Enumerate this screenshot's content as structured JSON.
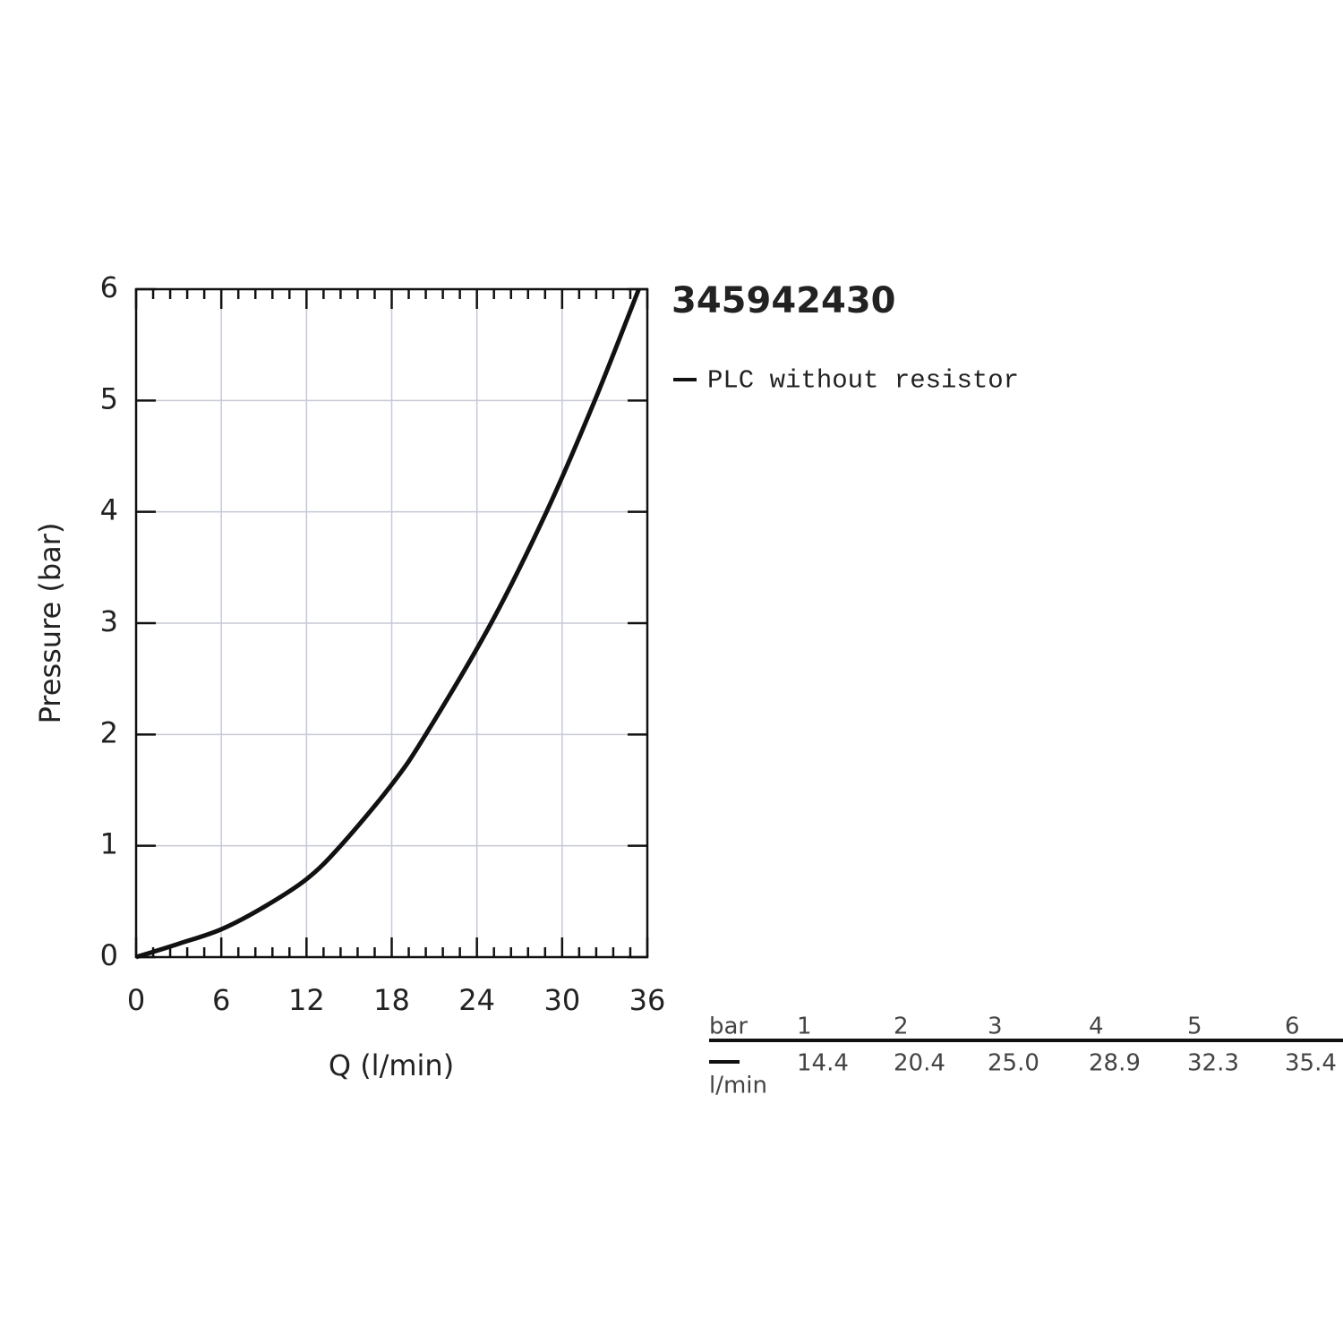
{
  "chart_data": {
    "type": "line",
    "title": "345942430",
    "x_label": "Q (l/min)",
    "y_label": "Pressure (bar)",
    "x": [
      0,
      3,
      6,
      9,
      12,
      14.4,
      18,
      20.4,
      25,
      28.9,
      32.3,
      35.4
    ],
    "series": [
      {
        "name": "PLC without resistor",
        "color": "#111111",
        "values": [
          0,
          0.12,
          0.25,
          0.45,
          0.7,
          1,
          1.55,
          2,
          3,
          4,
          5,
          6
        ]
      }
    ],
    "xlim": [
      0,
      36
    ],
    "xticks": [
      0,
      6,
      12,
      18,
      24,
      30,
      36
    ],
    "ylim": [
      0,
      6
    ],
    "yticks": [
      0,
      1,
      2,
      3,
      4,
      5,
      6
    ],
    "grid": true
  },
  "table": {
    "header": [
      "bar",
      "1",
      "2",
      "3",
      "4",
      "5",
      "6"
    ],
    "unit": "l/min",
    "values": [
      "14.4",
      "20.4",
      "25.0",
      "28.9",
      "32.3",
      "35.4"
    ]
  }
}
